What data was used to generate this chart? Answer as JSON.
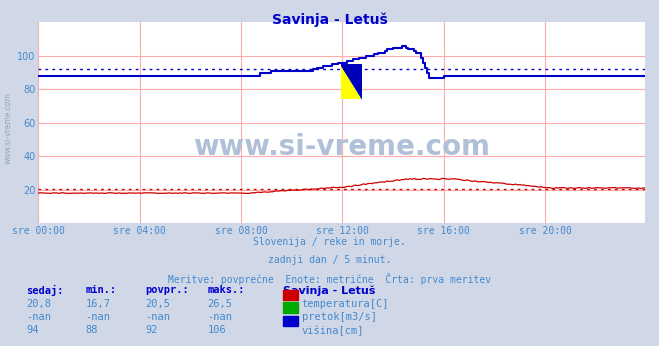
{
  "title": "Savinja - Letuš",
  "title_color": "#0000cc",
  "bg_color": "#d0d8e8",
  "plot_bg_color": "#ffffff",
  "grid_color": "#ffaaaa",
  "tick_color": "#4488cc",
  "text_color": "#4488cc",
  "watermark": "www.si-vreme.com",
  "watermark_color": "#b0c0d8",
  "subtitle1": "Slovenija / reke in morje.",
  "subtitle2": "zadnji dan / 5 minut.",
  "subtitle3": "Meritve: povprečne  Enote: metrične  Črta: prva meritev",
  "x_tick_labels": [
    "sre 00:00",
    "sre 04:00",
    "sre 08:00",
    "sre 12:00",
    "sre 16:00",
    "sre 20:00"
  ],
  "x_tick_positions": [
    0,
    48,
    96,
    144,
    192,
    240
  ],
  "ylim": [
    0,
    120
  ],
  "yticks": [
    20,
    40,
    60,
    80,
    100
  ],
  "n_points": 288,
  "temp_color": "#cc0000",
  "flow_color": "#00aa00",
  "height_color": "#0000cc",
  "avg_temp": 20.5,
  "avg_height": 92,
  "table_headers": [
    "sedaj:",
    "min.:",
    "povpr.:",
    "maks.:"
  ],
  "rows_sedaj": [
    "20,8",
    "-nan",
    "94"
  ],
  "rows_min": [
    "16,7",
    "-nan",
    "88"
  ],
  "rows_povpr": [
    "20,5",
    "-nan",
    "92"
  ],
  "rows_maks": [
    "26,5",
    "-nan",
    "106"
  ],
  "legend_title": "Savinja - Letuš",
  "legend_items": [
    "temperatura[C]",
    "pretok[m3/s]",
    "višina[cm]"
  ],
  "legend_colors": [
    "#cc0000",
    "#00aa00",
    "#0000cc"
  ],
  "left_watermark": "www.si-vreme.com"
}
